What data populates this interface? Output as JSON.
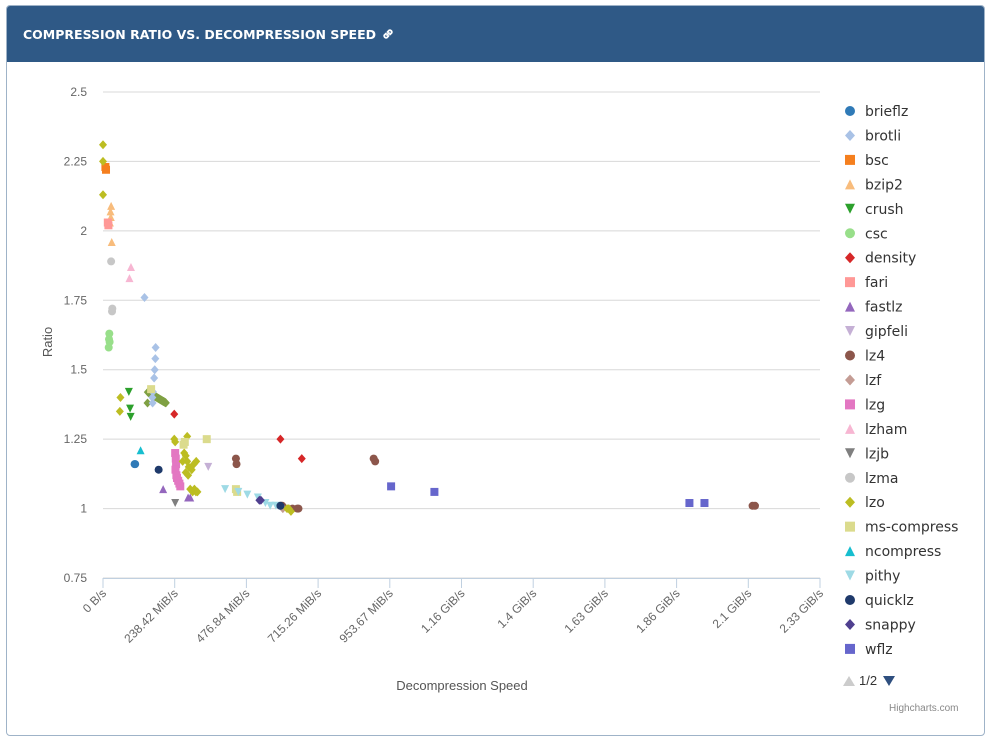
{
  "header": {
    "title": "COMPRESSION RATIO VS. DECOMPRESSION SPEED",
    "link_icon": "link-icon"
  },
  "credits": "Highcharts.com",
  "legend_nav": {
    "page_label": "1/2",
    "up_icon": "triangle-up-icon",
    "down_icon": "triangle-down-icon"
  },
  "chart_data": {
    "type": "scatter",
    "xlabel": "Decompression Speed",
    "ylabel": "Ratio",
    "x_unit": "MiB/s",
    "xlim": [
      0,
      2384.19
    ],
    "ylim": [
      0.75,
      2.5
    ],
    "x_ticks": [
      {
        "value": 0,
        "label": "0 B/s"
      },
      {
        "value": 238.42,
        "label": "238.42 MiB/s"
      },
      {
        "value": 476.84,
        "label": "476.84 MiB/s"
      },
      {
        "value": 715.26,
        "label": "715.26 MiB/s"
      },
      {
        "value": 953.67,
        "label": "953.67 MiB/s"
      },
      {
        "value": 1192.09,
        "label": "1.16 GiB/s"
      },
      {
        "value": 1430.51,
        "label": "1.4 GiB/s"
      },
      {
        "value": 1668.93,
        "label": "1.63 GiB/s"
      },
      {
        "value": 1907.35,
        "label": "1.86 GiB/s"
      },
      {
        "value": 2145.77,
        "label": "2.1 GiB/s"
      },
      {
        "value": 2384.19,
        "label": "2.33 GiB/s"
      }
    ],
    "y_ticks": [
      {
        "value": 0.75,
        "label": "0.75"
      },
      {
        "value": 1,
        "label": "1"
      },
      {
        "value": 1.25,
        "label": "1.25"
      },
      {
        "value": 1.5,
        "label": "1.5"
      },
      {
        "value": 1.75,
        "label": "1.75"
      },
      {
        "value": 2,
        "label": "2"
      },
      {
        "value": 2.25,
        "label": "2.25"
      },
      {
        "value": 2.5,
        "label": "2.5"
      }
    ],
    "legend_position": "right",
    "grid": "horizontal",
    "series": [
      {
        "name": "brieflz",
        "color": "#2f7ab7",
        "symbol": "circle",
        "points": [
          [
            105,
            1.16
          ],
          [
            107,
            1.16
          ]
        ]
      },
      {
        "name": "brotli",
        "color": "#a9c2e6",
        "symbol": "diamond",
        "points": [
          [
            138,
            1.76
          ],
          [
            175,
            1.58
          ],
          [
            174,
            1.54
          ],
          [
            172,
            1.5
          ],
          [
            170,
            1.47
          ],
          [
            166,
            1.42
          ],
          [
            164,
            1.4
          ],
          [
            165,
            1.38
          ]
        ]
      },
      {
        "name": "bsc",
        "color": "#f57f1e",
        "symbol": "square",
        "points": [
          [
            8,
            2.23
          ],
          [
            10,
            2.22
          ]
        ]
      },
      {
        "name": "bzip2",
        "color": "#f8bc7c",
        "symbol": "triangle",
        "points": [
          [
            27,
            2.09
          ],
          [
            25,
            2.07
          ],
          [
            26,
            2.05
          ],
          [
            23,
            2.03
          ],
          [
            29,
            1.96
          ]
        ]
      },
      {
        "name": "crush",
        "color": "#2ca02c",
        "symbol": "triangle-down",
        "points": [
          [
            86,
            1.42
          ],
          [
            90,
            1.36
          ],
          [
            92,
            1.33
          ]
        ]
      },
      {
        "name": "csc",
        "color": "#98df8a",
        "symbol": "circle",
        "points": [
          [
            21,
            1.63
          ],
          [
            20,
            1.61
          ],
          [
            22,
            1.6
          ],
          [
            19,
            1.58
          ]
        ]
      },
      {
        "name": "density",
        "color": "#d62728",
        "symbol": "diamond",
        "points": [
          [
            237,
            1.34
          ],
          [
            590,
            1.25
          ],
          [
            661,
            1.18
          ]
        ]
      },
      {
        "name": "fari",
        "color": "#ff9896",
        "symbol": "square",
        "points": [
          [
            16,
            2.03
          ],
          [
            18,
            2.02
          ]
        ]
      },
      {
        "name": "fastlz",
        "color": "#9467bd",
        "symbol": "triangle",
        "points": [
          [
            200,
            1.07
          ],
          [
            283,
            1.04
          ],
          [
            290,
            1.04
          ]
        ]
      },
      {
        "name": "gipfeli",
        "color": "#c5b0d5",
        "symbol": "triangle-down",
        "points": [
          [
            350,
            1.15
          ]
        ]
      },
      {
        "name": "lz4",
        "color": "#8c564b",
        "symbol": "circle",
        "points": [
          [
            442,
            1.18
          ],
          [
            444,
            1.16
          ],
          [
            900,
            1.18
          ],
          [
            905,
            1.17
          ],
          [
            596,
            1.01
          ],
          [
            630,
            1.0
          ],
          [
            646,
            1.0
          ],
          [
            650,
            1.0
          ],
          [
            2160,
            1.01
          ],
          [
            2168,
            1.01
          ]
        ]
      },
      {
        "name": "lzf",
        "color": "#c49c94",
        "symbol": "diamond",
        "points": [
          [
            592,
            1.01
          ],
          [
            598,
            1.0
          ]
        ]
      },
      {
        "name": "lzg",
        "color": "#e377c2",
        "symbol": "square",
        "points": [
          [
            240,
            1.2
          ],
          [
            242,
            1.18
          ],
          [
            243,
            1.16
          ],
          [
            241,
            1.14
          ],
          [
            244,
            1.12
          ],
          [
            246,
            1.11
          ],
          [
            250,
            1.1
          ],
          [
            254,
            1.09
          ],
          [
            257,
            1.08
          ]
        ]
      },
      {
        "name": "lzham",
        "color": "#f7b6d2",
        "symbol": "triangle",
        "points": [
          [
            93,
            1.87
          ],
          [
            88,
            1.83
          ]
        ]
      },
      {
        "name": "lzjb",
        "color": "#7f7f7f",
        "symbol": "triangle-down",
        "points": [
          [
            240,
            1.02
          ]
        ]
      },
      {
        "name": "lzma",
        "color": "#c7c7c7",
        "symbol": "circle",
        "points": [
          [
            27,
            1.89
          ],
          [
            31,
            1.72
          ],
          [
            30,
            1.71
          ]
        ]
      },
      {
        "name": "lzo",
        "color": "#bcbd22",
        "symbol": "diamond",
        "points": [
          [
            0,
            2.31
          ],
          [
            0,
            2.25
          ],
          [
            0,
            2.13
          ],
          [
            58,
            1.4
          ],
          [
            56,
            1.35
          ],
          [
            237,
            1.25
          ],
          [
            240,
            1.24
          ],
          [
            280,
            1.26
          ],
          [
            270,
            1.2
          ],
          [
            275,
            1.19
          ],
          [
            265,
            1.17
          ],
          [
            280,
            1.17
          ],
          [
            285,
            1.15
          ],
          [
            295,
            1.14
          ],
          [
            302,
            1.16
          ],
          [
            310,
            1.17
          ],
          [
            275,
            1.13
          ],
          [
            283,
            1.12
          ],
          [
            290,
            1.07
          ],
          [
            298,
            1.06
          ],
          [
            304,
            1.07
          ],
          [
            309,
            1.06
          ],
          [
            314,
            1.06
          ],
          [
            612,
            1.0
          ],
          [
            618,
            1.0
          ],
          [
            625,
            0.99
          ]
        ]
      },
      {
        "name": "ms-compress",
        "color": "#dbdb8d",
        "symbol": "square",
        "points": [
          [
            160,
            1.43
          ],
          [
            272,
            1.24
          ],
          [
            268,
            1.23
          ],
          [
            345,
            1.25
          ],
          [
            442,
            1.07
          ],
          [
            446,
            1.06
          ]
        ]
      },
      {
        "name": "ncompress",
        "color": "#17becf",
        "symbol": "triangle",
        "points": [
          [
            125,
            1.21
          ]
        ]
      },
      {
        "name": "pithy",
        "color": "#9edae5",
        "symbol": "triangle-down",
        "points": [
          [
            406,
            1.07
          ],
          [
            450,
            1.06
          ],
          [
            480,
            1.05
          ],
          [
            515,
            1.04
          ],
          [
            540,
            1.02
          ],
          [
            556,
            1.01
          ],
          [
            575,
            1.01
          ]
        ]
      },
      {
        "name": "quicklz",
        "color": "#1f3a6b",
        "symbol": "circle",
        "points": [
          [
            185,
            1.14
          ],
          [
            590,
            1.01
          ]
        ]
      },
      {
        "name": "snappy",
        "color": "#4f3f8f",
        "symbol": "diamond",
        "points": [
          [
            520,
            1.03
          ],
          [
            525,
            1.03
          ]
        ]
      },
      {
        "name": "wflz",
        "color": "#6666cc",
        "symbol": "square",
        "points": [
          [
            958,
            1.08
          ],
          [
            1102,
            1.06
          ],
          [
            1950,
            1.02
          ],
          [
            2000,
            1.02
          ]
        ]
      }
    ],
    "cluster": {
      "series": "lzo",
      "color": "#7fa043",
      "x_range": [
        148,
        210
      ],
      "y_range": [
        1.38,
        1.42
      ]
    }
  }
}
